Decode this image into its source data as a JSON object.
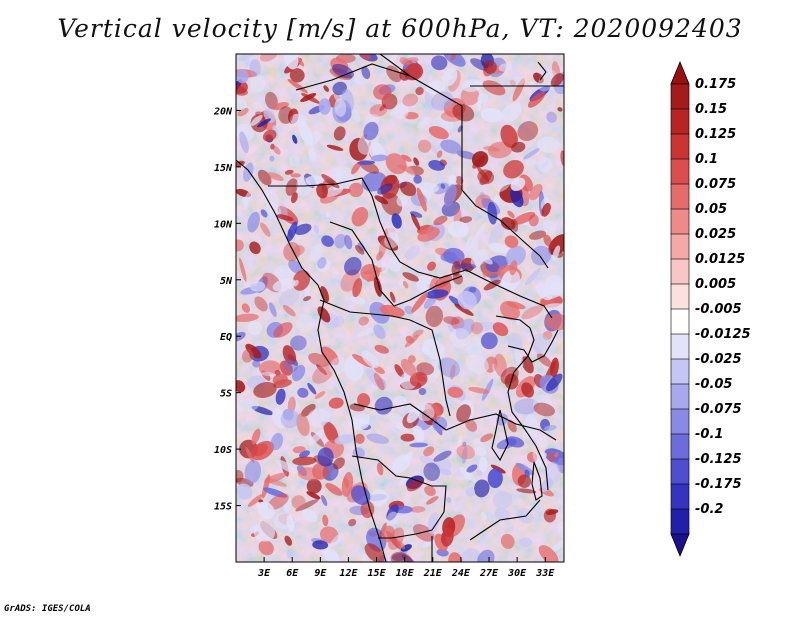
{
  "title": "Vertical velocity [m/s] at 600hPa, VT: 2020092403",
  "credit": "GrADS: IGES/COLA",
  "map": {
    "lon_range": [
      0,
      35
    ],
    "lat_range": [
      -20,
      25
    ],
    "lon_ticks": [
      {
        "value": 3,
        "label": "3E"
      },
      {
        "value": 6,
        "label": "6E"
      },
      {
        "value": 9,
        "label": "9E"
      },
      {
        "value": 12,
        "label": "12E"
      },
      {
        "value": 15,
        "label": "15E"
      },
      {
        "value": 18,
        "label": "18E"
      },
      {
        "value": 21,
        "label": "21E"
      },
      {
        "value": 24,
        "label": "24E"
      },
      {
        "value": 27,
        "label": "27E"
      },
      {
        "value": 30,
        "label": "30E"
      },
      {
        "value": 33,
        "label": "33E"
      }
    ],
    "lat_ticks": [
      {
        "value": 20,
        "label": "20N"
      },
      {
        "value": 15,
        "label": "15N"
      },
      {
        "value": 10,
        "label": "10N"
      },
      {
        "value": 5,
        "label": "5N"
      },
      {
        "value": 0,
        "label": "EQ"
      },
      {
        "value": -5,
        "label": "5S"
      },
      {
        "value": -10,
        "label": "10S"
      },
      {
        "value": -15,
        "label": "15S"
      }
    ]
  },
  "colorbar": {
    "levels": [
      {
        "label": "0.175",
        "color": "#a51a1a"
      },
      {
        "label": "0.15",
        "color": "#b82424"
      },
      {
        "label": "0.125",
        "color": "#cc3434"
      },
      {
        "label": "0.1",
        "color": "#dc4e4e"
      },
      {
        "label": "0.075",
        "color": "#e66c6c"
      },
      {
        "label": "0.05",
        "color": "#ee8a8a"
      },
      {
        "label": "0.025",
        "color": "#f4a8a8"
      },
      {
        "label": "0.0125",
        "color": "#f8c6c6"
      },
      {
        "label": "0.005",
        "color": "#fbe0e0"
      },
      {
        "label": "-0.005",
        "color": "#ffffff"
      },
      {
        "label": "-0.0125",
        "color": "#e2e2fa"
      },
      {
        "label": "-0.025",
        "color": "#c6c6f4"
      },
      {
        "label": "-0.05",
        "color": "#a8a8ee"
      },
      {
        "label": "-0.075",
        "color": "#8a8ae6"
      },
      {
        "label": "-0.1",
        "color": "#6c6cdc"
      },
      {
        "label": "-0.125",
        "color": "#4e4ed0"
      },
      {
        "label": "-0.175",
        "color": "#3434c0"
      },
      {
        "label": "-0.2",
        "color": "#2020aa"
      }
    ],
    "top_color": "#9a1010",
    "bottom_color": "#1a1090"
  }
}
